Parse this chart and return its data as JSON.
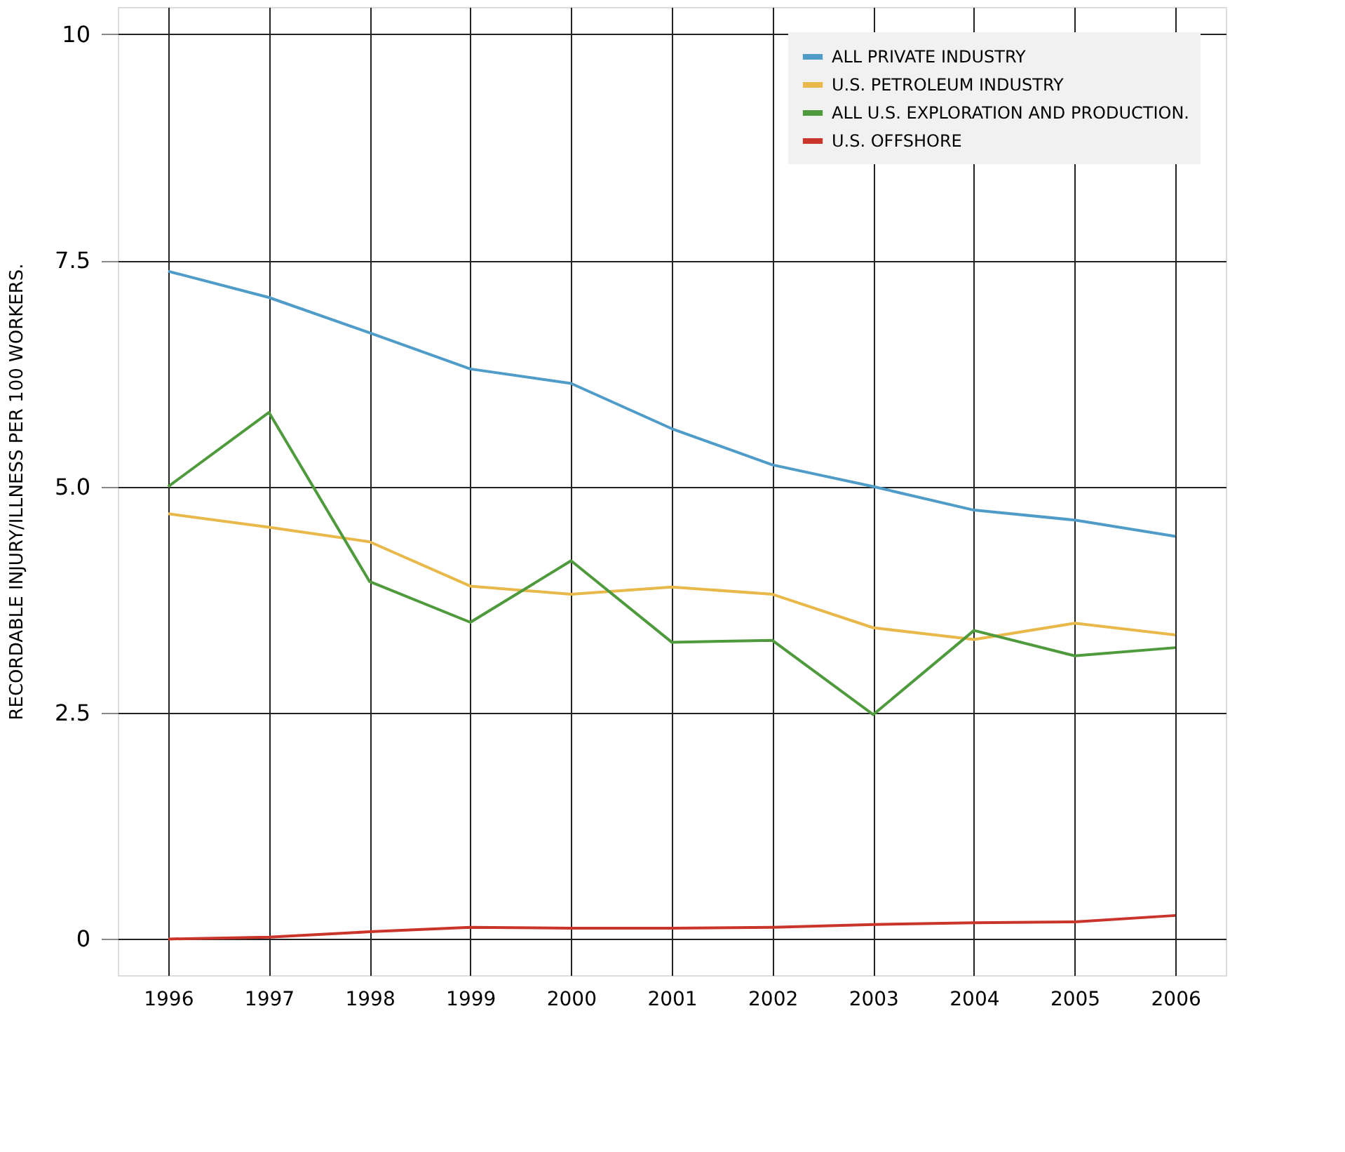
{
  "chart_data": {
    "type": "line",
    "ylabel": "RECORDABLE INJURY/ILLNESS PER 100 WORKERS.",
    "categories": [
      "1996",
      "1997",
      "1998",
      "1999",
      "2000",
      "2001",
      "2002",
      "2003",
      "2004",
      "2005",
      "2006"
    ],
    "series": [
      {
        "name": "ALL PRIVATE INDUSTRY",
        "color": "#4f9cc9",
        "values": [
          7.38,
          7.09,
          6.7,
          6.3,
          6.14,
          5.64,
          5.24,
          5.0,
          4.74,
          4.63,
          4.45
        ]
      },
      {
        "name": "U.S. PETROLEUM INDUSTRY",
        "color": "#e8b84a",
        "values": [
          4.7,
          4.55,
          4.39,
          3.9,
          3.81,
          3.89,
          3.81,
          3.44,
          3.31,
          3.49,
          3.36
        ]
      },
      {
        "name": "ALL U.S. EXPLORATION AND PRODUCTION.",
        "color": "#4e9a3c",
        "values": [
          5.0,
          5.82,
          3.95,
          3.5,
          4.18,
          3.28,
          3.3,
          2.48,
          3.41,
          3.13,
          3.22
        ]
      },
      {
        "name": "U.S. OFFSHORE",
        "color": "#c9352a",
        "values": [
          0.0,
          0.02,
          0.08,
          0.13,
          0.12,
          0.12,
          0.13,
          0.16,
          0.18,
          0.19,
          0.26
        ]
      }
    ],
    "ylim": [
      -0.4,
      10.3
    ],
    "yticks": [
      0,
      2.5,
      {
        "value": 5,
        "label": "5.0"
      },
      7.5,
      10
    ],
    "grid": true,
    "legend": "top right",
    "marker": "none",
    "line_style": "solid"
  }
}
